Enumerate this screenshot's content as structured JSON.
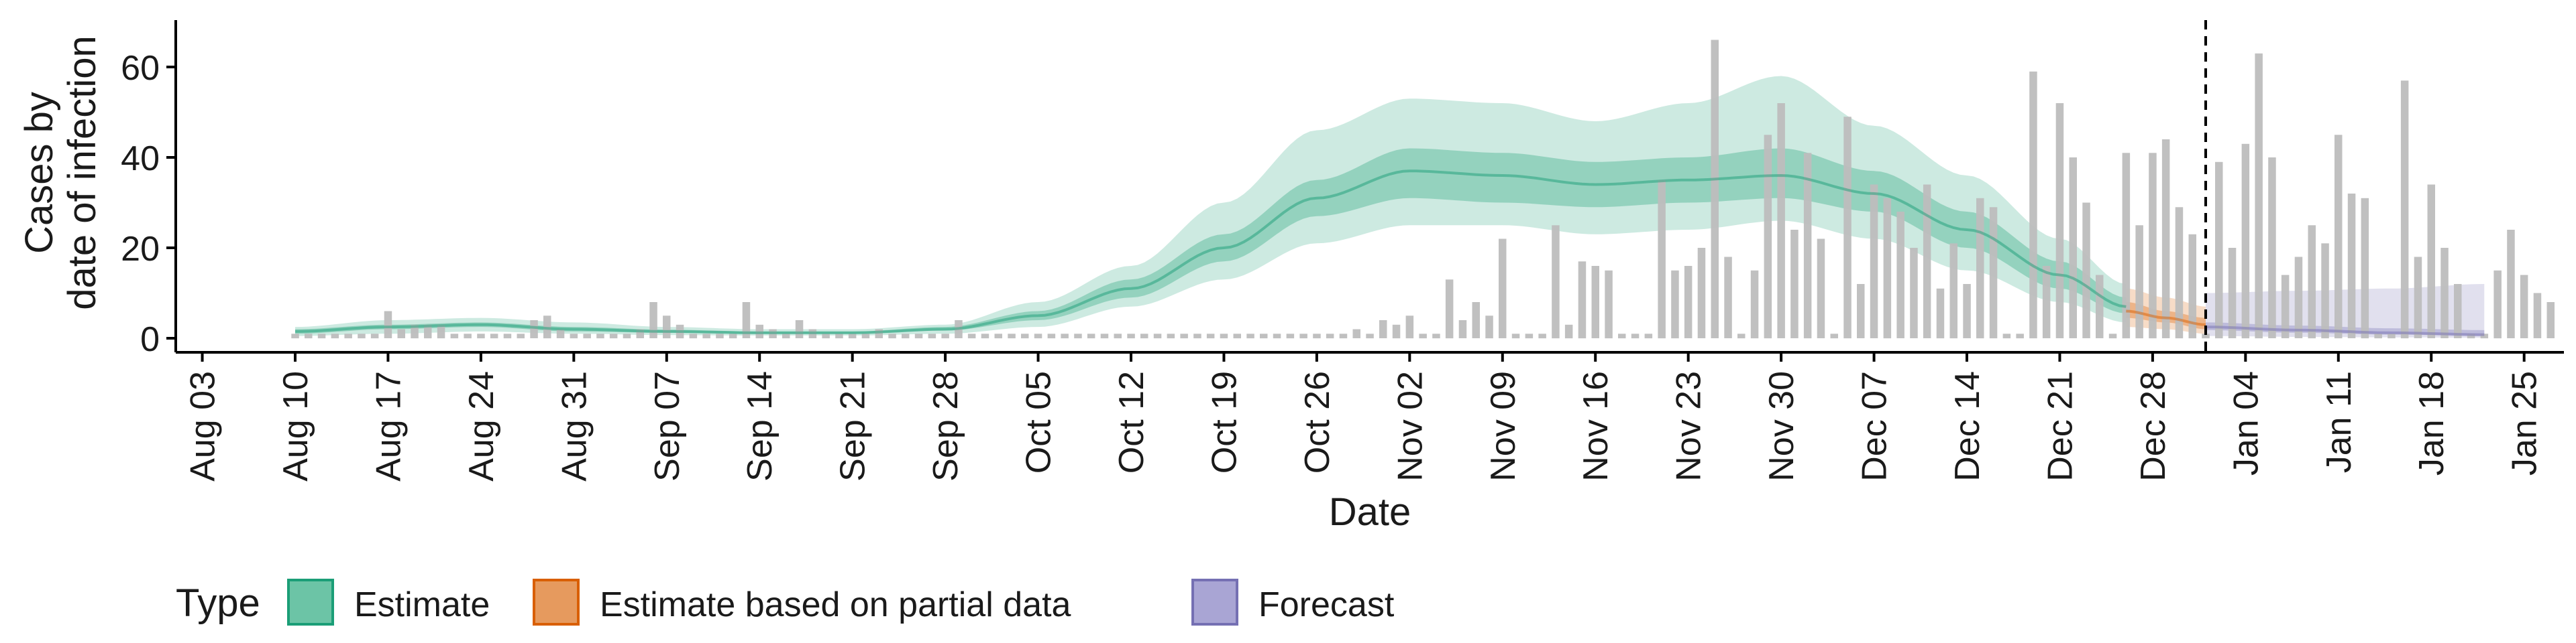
{
  "chart_data": {
    "type": "bar",
    "xlabel": "Date",
    "ylabel_lines": [
      "Cases by",
      "date of infection"
    ],
    "ylim": [
      0,
      70
    ],
    "y_ticks": [
      0,
      20,
      40,
      60
    ],
    "x_range": [
      "2020-08-01",
      "2021-01-28"
    ],
    "x_tick_labels": [
      {
        "date": "2020-08-03",
        "label": "Aug 03"
      },
      {
        "date": "2020-08-10",
        "label": "Aug 10"
      },
      {
        "date": "2020-08-17",
        "label": "Aug 17"
      },
      {
        "date": "2020-08-24",
        "label": "Aug 24"
      },
      {
        "date": "2020-08-31",
        "label": "Aug 31"
      },
      {
        "date": "2020-09-07",
        "label": "Sep 07"
      },
      {
        "date": "2020-09-14",
        "label": "Sep 14"
      },
      {
        "date": "2020-09-21",
        "label": "Sep 21"
      },
      {
        "date": "2020-09-28",
        "label": "Sep 28"
      },
      {
        "date": "2020-10-05",
        "label": "Oct 05"
      },
      {
        "date": "2020-10-12",
        "label": "Oct 12"
      },
      {
        "date": "2020-10-19",
        "label": "Oct 19"
      },
      {
        "date": "2020-10-26",
        "label": "Oct 26"
      },
      {
        "date": "2020-11-02",
        "label": "Nov 02"
      },
      {
        "date": "2020-11-09",
        "label": "Nov 09"
      },
      {
        "date": "2020-11-16",
        "label": "Nov 16"
      },
      {
        "date": "2020-11-23",
        "label": "Nov 23"
      },
      {
        "date": "2020-11-30",
        "label": "Nov 30"
      },
      {
        "date": "2020-12-07",
        "label": "Dec 07"
      },
      {
        "date": "2020-12-14",
        "label": "Dec 14"
      },
      {
        "date": "2020-12-21",
        "label": "Dec 21"
      },
      {
        "date": "2020-12-28",
        "label": "Dec 28"
      },
      {
        "date": "2021-01-04",
        "label": "Jan 04"
      },
      {
        "date": "2021-01-11",
        "label": "Jan 11"
      },
      {
        "date": "2021-01-18",
        "label": "Jan 18"
      },
      {
        "date": "2021-01-25",
        "label": "Jan 25"
      }
    ],
    "forecast_start": "2021-01-01",
    "bars": {
      "start_date": "2020-08-10",
      "values": [
        1,
        1,
        1,
        1,
        1,
        1,
        1,
        6,
        2,
        3,
        3,
        3,
        1,
        1,
        1,
        1,
        1,
        1,
        4,
        5,
        2,
        1,
        1,
        1,
        1,
        1,
        2,
        8,
        5,
        3,
        1,
        1,
        1,
        1,
        8,
        3,
        2,
        1,
        4,
        2,
        1,
        1,
        1,
        1,
        2,
        1,
        1,
        1,
        1,
        1,
        4,
        1,
        1,
        1,
        1,
        1,
        1,
        1,
        1,
        1,
        1,
        1,
        1,
        1,
        1,
        1,
        1,
        1,
        1,
        1,
        1,
        1,
        1,
        1,
        1,
        1,
        1,
        1,
        1,
        1,
        2,
        1,
        4,
        3,
        5,
        1,
        1,
        13,
        4,
        8,
        5,
        22,
        1,
        1,
        1,
        25,
        3,
        17,
        16,
        15,
        1,
        1,
        1,
        35,
        15,
        16,
        20,
        66,
        18,
        1,
        15,
        45,
        52,
        24,
        41,
        22,
        1,
        49,
        12,
        34,
        31,
        28,
        20,
        34,
        11,
        21,
        12,
        31,
        29,
        1,
        1,
        59,
        16,
        52,
        40,
        30,
        14,
        1,
        41,
        25,
        41,
        44,
        29,
        23,
        1,
        39,
        20,
        43,
        63,
        40,
        14,
        18,
        25,
        21,
        45,
        32,
        31,
        1,
        1,
        57,
        18,
        34,
        20,
        12,
        1,
        1,
        15,
        24,
        14,
        10,
        8
      ]
    },
    "series": [
      {
        "name": "Estimate",
        "color": "#1b9e77",
        "start_date": "2020-08-10",
        "end_date": "2020-12-26",
        "knots": {
          "dates": [
            "2020-08-10",
            "2020-08-17",
            "2020-08-24",
            "2020-08-31",
            "2020-09-07",
            "2020-09-14",
            "2020-09-21",
            "2020-09-28",
            "2020-10-05",
            "2020-10-12",
            "2020-10-19",
            "2020-10-26",
            "2020-11-02",
            "2020-11-09",
            "2020-11-16",
            "2020-11-23",
            "2020-11-30",
            "2020-12-07",
            "2020-12-14",
            "2020-12-21",
            "2020-12-26"
          ],
          "median": [
            1.5,
            2.5,
            3,
            2,
            1.5,
            1.2,
            1.2,
            2,
            5,
            11,
            20,
            31,
            37,
            36,
            34,
            35,
            36,
            32,
            24,
            14,
            7
          ],
          "lower_50": [
            1,
            2,
            2.5,
            1.5,
            1.2,
            1,
            1,
            1.7,
            4,
            9,
            17,
            27,
            31,
            30,
            29,
            30,
            31,
            28,
            20,
            11,
            5.5
          ],
          "upper_50": [
            2,
            3,
            3.5,
            2.5,
            1.9,
            1.5,
            1.5,
            2.5,
            6,
            13,
            23,
            35,
            42,
            41,
            39,
            40,
            42,
            37,
            28,
            17,
            9
          ],
          "lower_90": [
            0.5,
            1,
            1.5,
            1,
            0.7,
            0.6,
            0.6,
            1,
            2.5,
            7,
            13,
            21,
            25,
            25,
            23,
            24,
            26,
            22,
            15,
            8,
            3.5
          ],
          "upper_90": [
            2.5,
            4,
            4.5,
            3.5,
            2.5,
            2,
            2,
            3,
            8,
            16,
            30,
            46,
            53,
            52,
            48,
            52,
            58,
            47,
            36,
            22,
            12
          ]
        }
      },
      {
        "name": "Estimate based on partial data",
        "color": "#d95f02",
        "start_date": "2020-12-26",
        "end_date": "2021-01-01",
        "knots": {
          "dates": [
            "2020-12-26",
            "2020-12-29",
            "2021-01-01"
          ],
          "median": [
            6,
            4.5,
            3
          ],
          "lower_50": [
            4.5,
            3.5,
            2
          ],
          "upper_50": [
            8,
            6,
            4.5
          ],
          "lower_90": [
            2.5,
            2,
            1
          ],
          "upper_90": [
            11,
            9,
            7
          ]
        }
      },
      {
        "name": "Forecast",
        "color": "#7570b3",
        "start_date": "2021-01-01",
        "end_date": "2021-01-22",
        "knots": {
          "dates": [
            "2021-01-01",
            "2021-01-08",
            "2021-01-15",
            "2021-01-22"
          ],
          "median": [
            2.5,
            1.8,
            1.2,
            0.8
          ],
          "lower_50": [
            1.8,
            1.2,
            0.8,
            0.5
          ],
          "upper_50": [
            3.5,
            2.8,
            2.2,
            1.8
          ],
          "lower_90": [
            0.5,
            0.3,
            0.2,
            0.1
          ],
          "upper_90": [
            10,
            10.5,
            11,
            12
          ]
        }
      }
    ],
    "legend": {
      "title": "Type",
      "position": "bottom",
      "entries": [
        {
          "label": "Estimate",
          "fill": "#6cc4a6",
          "stroke": "#1b9e77"
        },
        {
          "label": "Estimate based on partial data",
          "fill": "#e69a5e",
          "stroke": "#d95f02"
        },
        {
          "label": "Forecast",
          "fill": "#a9a5d4",
          "stroke": "#7570b3"
        }
      ]
    },
    "colors": {
      "bars": "#bdbdbd",
      "axis": "#000000",
      "forecast_line": "#000000"
    }
  }
}
